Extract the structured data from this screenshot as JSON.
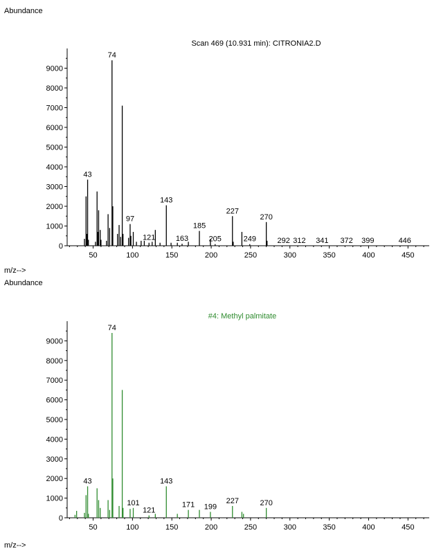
{
  "chart_data": [
    {
      "type": "bar",
      "ylabel": "Abundance",
      "xlabel": "m/z-->",
      "title": "Scan 469 (10.931 min): CITRONIA2.D",
      "title_color": "#000000",
      "bar_color": "#000000",
      "xlim": [
        17,
        477
      ],
      "ylim": [
        0,
        10000
      ],
      "xticks": [
        50,
        100,
        150,
        200,
        250,
        300,
        350,
        400,
        450
      ],
      "yticks": [
        0,
        1000,
        2000,
        3000,
        4000,
        5000,
        6000,
        7000,
        8000,
        9000
      ],
      "peaks": [
        {
          "mz": 39,
          "abundance": 350
        },
        {
          "mz": 41,
          "abundance": 2500
        },
        {
          "mz": 42,
          "abundance": 600
        },
        {
          "mz": 43,
          "abundance": 3350
        },
        {
          "mz": 44,
          "abundance": 300
        },
        {
          "mz": 53,
          "abundance": 200
        },
        {
          "mz": 55,
          "abundance": 2750
        },
        {
          "mz": 56,
          "abundance": 700
        },
        {
          "mz": 57,
          "abundance": 1800
        },
        {
          "mz": 59,
          "abundance": 800
        },
        {
          "mz": 60,
          "abundance": 300
        },
        {
          "mz": 67,
          "abundance": 250
        },
        {
          "mz": 69,
          "abundance": 1600
        },
        {
          "mz": 71,
          "abundance": 900
        },
        {
          "mz": 74,
          "abundance": 9400
        },
        {
          "mz": 75,
          "abundance": 2000
        },
        {
          "mz": 81,
          "abundance": 600
        },
        {
          "mz": 83,
          "abundance": 1050
        },
        {
          "mz": 85,
          "abundance": 450
        },
        {
          "mz": 87,
          "abundance": 7100
        },
        {
          "mz": 88,
          "abundance": 600
        },
        {
          "mz": 95,
          "abundance": 400
        },
        {
          "mz": 97,
          "abundance": 1100
        },
        {
          "mz": 98,
          "abundance": 500
        },
        {
          "mz": 101,
          "abundance": 700
        },
        {
          "mz": 105,
          "abundance": 200
        },
        {
          "mz": 111,
          "abundance": 250
        },
        {
          "mz": 115,
          "abundance": 250
        },
        {
          "mz": 121,
          "abundance": 150
        },
        {
          "mz": 125,
          "abundance": 200
        },
        {
          "mz": 129,
          "abundance": 800
        },
        {
          "mz": 135,
          "abundance": 150
        },
        {
          "mz": 143,
          "abundance": 2050
        },
        {
          "mz": 149,
          "abundance": 150
        },
        {
          "mz": 157,
          "abundance": 150
        },
        {
          "mz": 163,
          "abundance": 100
        },
        {
          "mz": 171,
          "abundance": 200
        },
        {
          "mz": 185,
          "abundance": 750
        },
        {
          "mz": 199,
          "abundance": 350
        },
        {
          "mz": 205,
          "abundance": 80
        },
        {
          "mz": 227,
          "abundance": 1500
        },
        {
          "mz": 228,
          "abundance": 200
        },
        {
          "mz": 239,
          "abundance": 700
        },
        {
          "mz": 249,
          "abundance": 80
        },
        {
          "mz": 270,
          "abundance": 1200
        },
        {
          "mz": 271,
          "abundance": 250
        }
      ],
      "annotations": [
        {
          "text": "43",
          "mz": 43,
          "abundance": 3350
        },
        {
          "text": "74",
          "mz": 74,
          "abundance": 9400
        },
        {
          "text": "97",
          "mz": 97,
          "abundance": 1100
        },
        {
          "text": "121",
          "mz": 121,
          "abundance": 150
        },
        {
          "text": "143",
          "mz": 143,
          "abundance": 2050
        },
        {
          "text": "163",
          "mz": 163,
          "abundance": 100
        },
        {
          "text": "185",
          "mz": 185,
          "abundance": 750
        },
        {
          "text": "205",
          "mz": 205,
          "abundance": 80
        },
        {
          "text": "227",
          "mz": 227,
          "abundance": 1500
        },
        {
          "text": "249",
          "mz": 249,
          "abundance": 80
        },
        {
          "text": "270",
          "mz": 270,
          "abundance": 1200
        },
        {
          "text": "292",
          "mz": 292,
          "abundance": 0
        },
        {
          "text": "312",
          "mz": 312,
          "abundance": 0
        },
        {
          "text": "341",
          "mz": 341,
          "abundance": 0
        },
        {
          "text": "372",
          "mz": 372,
          "abundance": 0
        },
        {
          "text": "399",
          "mz": 399,
          "abundance": 0
        },
        {
          "text": "446",
          "mz": 446,
          "abundance": 0
        }
      ]
    },
    {
      "type": "bar",
      "ylabel": "Abundance",
      "xlabel": "m/z-->",
      "title": "#4: Methyl palmitate",
      "title_color": "#2e8b2e",
      "bar_color": "#2e8b2e",
      "xlim": [
        17,
        477
      ],
      "ylim": [
        0,
        10000
      ],
      "xticks": [
        50,
        100,
        150,
        200,
        250,
        300,
        350,
        400,
        450
      ],
      "yticks": [
        0,
        1000,
        2000,
        3000,
        4000,
        5000,
        6000,
        7000,
        8000,
        9000
      ],
      "peaks": [
        {
          "mz": 27,
          "abundance": 150
        },
        {
          "mz": 29,
          "abundance": 350
        },
        {
          "mz": 39,
          "abundance": 250
        },
        {
          "mz": 41,
          "abundance": 1150
        },
        {
          "mz": 43,
          "abundance": 1600
        },
        {
          "mz": 44,
          "abundance": 200
        },
        {
          "mz": 55,
          "abundance": 1500
        },
        {
          "mz": 57,
          "abundance": 900
        },
        {
          "mz": 59,
          "abundance": 500
        },
        {
          "mz": 69,
          "abundance": 900
        },
        {
          "mz": 71,
          "abundance": 400
        },
        {
          "mz": 74,
          "abundance": 9400
        },
        {
          "mz": 75,
          "abundance": 2000
        },
        {
          "mz": 83,
          "abundance": 600
        },
        {
          "mz": 87,
          "abundance": 6500
        },
        {
          "mz": 88,
          "abundance": 500
        },
        {
          "mz": 97,
          "abundance": 450
        },
        {
          "mz": 101,
          "abundance": 500
        },
        {
          "mz": 121,
          "abundance": 120
        },
        {
          "mz": 129,
          "abundance": 200
        },
        {
          "mz": 143,
          "abundance": 1600
        },
        {
          "mz": 157,
          "abundance": 200
        },
        {
          "mz": 171,
          "abundance": 400
        },
        {
          "mz": 185,
          "abundance": 400
        },
        {
          "mz": 199,
          "abundance": 300
        },
        {
          "mz": 227,
          "abundance": 600
        },
        {
          "mz": 239,
          "abundance": 300
        },
        {
          "mz": 241,
          "abundance": 200
        },
        {
          "mz": 270,
          "abundance": 500
        }
      ],
      "annotations": [
        {
          "text": "43",
          "mz": 43,
          "abundance": 1600
        },
        {
          "text": "74",
          "mz": 74,
          "abundance": 9400
        },
        {
          "text": "101",
          "mz": 101,
          "abundance": 500
        },
        {
          "text": "121",
          "mz": 121,
          "abundance": 120
        },
        {
          "text": "143",
          "mz": 143,
          "abundance": 1600
        },
        {
          "text": "171",
          "mz": 171,
          "abundance": 400
        },
        {
          "text": "199",
          "mz": 199,
          "abundance": 300
        },
        {
          "text": "227",
          "mz": 227,
          "abundance": 600
        },
        {
          "text": "270",
          "mz": 270,
          "abundance": 500
        }
      ]
    }
  ]
}
